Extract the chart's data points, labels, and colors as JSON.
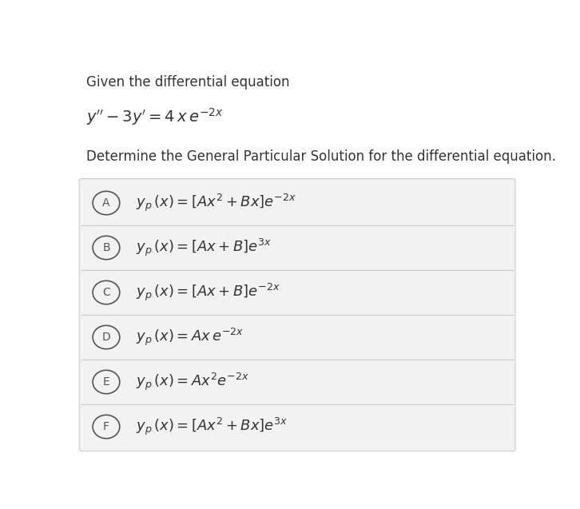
{
  "background_color": "#ffffff",
  "panel_color": "#f2f2f2",
  "title_line1": "Given the differential equation",
  "subtitle": "Determine the General Particular Solution for the differential equation.",
  "options": [
    {
      "label": "A",
      "text": "$y_{p}\\,(x) = \\left[Ax^2 + Bx\\right]e^{-2x}$"
    },
    {
      "label": "B",
      "text": "$y_{p}\\,(x) = \\left[Ax + B\\right]e^{3x}$"
    },
    {
      "label": "C",
      "text": "$y_{p}\\,(x) = \\left[Ax + B\\right]e^{-2x}$"
    },
    {
      "label": "D",
      "text": "$y_{p}\\,(x) = Ax\\,e^{-2x}$"
    },
    {
      "label": "E",
      "text": "$y_{p}\\,(x) = Ax^2 e^{-2x}$"
    },
    {
      "label": "F",
      "text": "$y_{p}\\,(x) = \\left[Ax^2 + Bx\\right]e^{3x}$"
    }
  ],
  "circle_color": "#555555",
  "text_color": "#333333",
  "divider_color": "#cccccc"
}
